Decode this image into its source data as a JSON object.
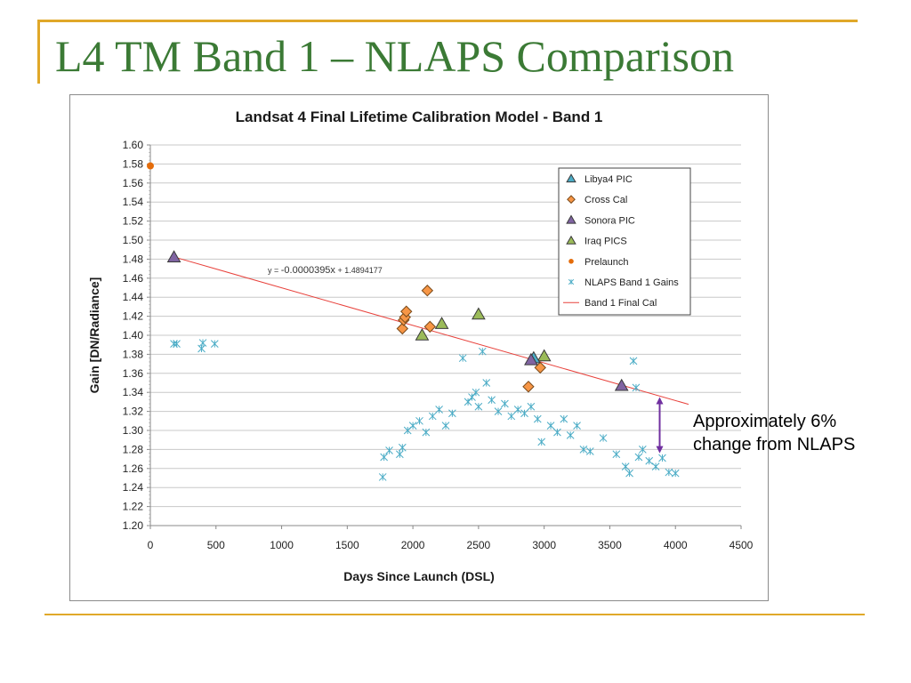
{
  "slide": {
    "title": "L4 TM Band 1 – NLAPS Comparison"
  },
  "annotation": {
    "line1": "Approximately 6%",
    "line2": "change from NLAPS"
  },
  "colors": {
    "accent_rule": "#e0a829",
    "title_text": "#3b7a35",
    "libya": "#4bacc6",
    "crosscal": "#f79646",
    "sonora": "#8064a2",
    "iraq": "#9bbb59",
    "prelaunch": "#e46c0a",
    "nlaps": "#4bacc6",
    "fitline": "#e8423c",
    "arrow": "#7030a0"
  },
  "chart_data": {
    "type": "scatter",
    "title": "Landsat 4 Final Lifetime Calibration Model - Band 1",
    "xlabel": "Days Since Launch (DSL)",
    "ylabel": "Gain [DN/Radiance]",
    "xlim": [
      0,
      4500
    ],
    "ylim": [
      1.2,
      1.6
    ],
    "xticks": [
      "0",
      "500",
      "1000",
      "1500",
      "2000",
      "2500",
      "3000",
      "3500",
      "4000",
      "4500"
    ],
    "yticks": [
      "1.20",
      "1.22",
      "1.24",
      "1.26",
      "1.28",
      "1.30",
      "1.32",
      "1.34",
      "1.36",
      "1.38",
      "1.40",
      "1.42",
      "1.44",
      "1.46",
      "1.48",
      "1.50",
      "1.52",
      "1.54",
      "1.56",
      "1.58",
      "1.60"
    ],
    "grid": true,
    "legend_position": "top-right",
    "equation": {
      "prefix": "y = ",
      "slope_text": "-0.0000395x",
      "suffix": " + 1.4894177"
    },
    "series": [
      {
        "name": "Libya4 PIC",
        "marker": "triangle",
        "points": [
          [
            2920,
            1.376
          ]
        ]
      },
      {
        "name": "Cross Cal",
        "marker": "diamond",
        "points": [
          [
            1920,
            1.407
          ],
          [
            1930,
            1.416
          ],
          [
            1940,
            1.419
          ],
          [
            1950,
            1.425
          ],
          [
            2110,
            1.447
          ],
          [
            2130,
            1.409
          ],
          [
            2880,
            1.346
          ],
          [
            2970,
            1.366
          ]
        ]
      },
      {
        "name": "Sonora PIC",
        "marker": "triangle",
        "points": [
          [
            180,
            1.482
          ],
          [
            2900,
            1.374
          ],
          [
            3590,
            1.347
          ]
        ]
      },
      {
        "name": "Iraq PICS",
        "marker": "triangle",
        "points": [
          [
            2070,
            1.4
          ],
          [
            2220,
            1.412
          ],
          [
            2500,
            1.422
          ],
          [
            3000,
            1.378
          ]
        ]
      },
      {
        "name": "Prelaunch",
        "marker": "circle",
        "points": [
          [
            0,
            1.578
          ]
        ]
      },
      {
        "name": "NLAPS Band 1 Gains",
        "marker": "asterisk",
        "points": [
          [
            180,
            1.391
          ],
          [
            200,
            1.391
          ],
          [
            390,
            1.386
          ],
          [
            400,
            1.392
          ],
          [
            490,
            1.391
          ],
          [
            1770,
            1.251
          ],
          [
            1780,
            1.272
          ],
          [
            1820,
            1.279
          ],
          [
            1900,
            1.275
          ],
          [
            1920,
            1.282
          ],
          [
            1960,
            1.3
          ],
          [
            2000,
            1.305
          ],
          [
            2050,
            1.31
          ],
          [
            2100,
            1.298
          ],
          [
            2150,
            1.315
          ],
          [
            2200,
            1.322
          ],
          [
            2250,
            1.305
          ],
          [
            2300,
            1.318
          ],
          [
            2380,
            1.376
          ],
          [
            2420,
            1.33
          ],
          [
            2450,
            1.335
          ],
          [
            2480,
            1.34
          ],
          [
            2500,
            1.325
          ],
          [
            2530,
            1.383
          ],
          [
            2560,
            1.35
          ],
          [
            2600,
            1.332
          ],
          [
            2650,
            1.32
          ],
          [
            2700,
            1.328
          ],
          [
            2750,
            1.315
          ],
          [
            2800,
            1.322
          ],
          [
            2850,
            1.318
          ],
          [
            2900,
            1.325
          ],
          [
            2950,
            1.312
          ],
          [
            2980,
            1.288
          ],
          [
            3050,
            1.305
          ],
          [
            3100,
            1.298
          ],
          [
            3150,
            1.312
          ],
          [
            3200,
            1.295
          ],
          [
            3250,
            1.305
          ],
          [
            3300,
            1.28
          ],
          [
            3350,
            1.278
          ],
          [
            3450,
            1.292
          ],
          [
            3550,
            1.275
          ],
          [
            3620,
            1.262
          ],
          [
            3650,
            1.255
          ],
          [
            3680,
            1.373
          ],
          [
            3700,
            1.345
          ],
          [
            3720,
            1.272
          ],
          [
            3750,
            1.28
          ],
          [
            3800,
            1.268
          ],
          [
            3850,
            1.262
          ],
          [
            3900,
            1.271
          ],
          [
            3950,
            1.256
          ],
          [
            4000,
            1.255
          ]
        ]
      },
      {
        "name": "Band 1 Final Cal",
        "marker": "line",
        "x_range": [
          180,
          4100
        ],
        "slope": -3.95e-05,
        "intercept": 1.4894177
      }
    ],
    "annotation_arrow": {
      "x": 3880,
      "y_top": 1.335,
      "y_bottom": 1.276
    }
  }
}
